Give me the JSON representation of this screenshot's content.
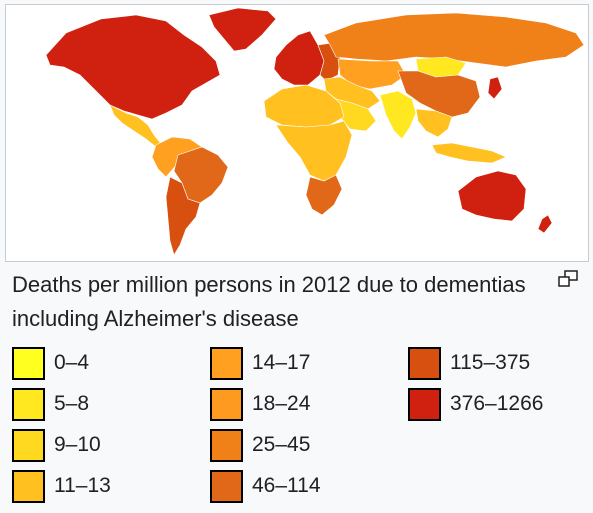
{
  "caption": "Deaths per million persons in 2012 due to dementias including Alzheimer's disease",
  "legend": [
    {
      "label": "0–4",
      "color": "#ffff20"
    },
    {
      "label": "5–8",
      "color": "#ffe820"
    },
    {
      "label": "9–10",
      "color": "#ffd820"
    },
    {
      "label": "11–13",
      "color": "#ffc020"
    },
    {
      "label": "14–17",
      "color": "#ffa020"
    },
    {
      "label": "18–24",
      "color": "#ff9a20"
    },
    {
      "label": "25–45",
      "color": "#f08018"
    },
    {
      "label": "46–114",
      "color": "#e06818"
    },
    {
      "label": "115–375",
      "color": "#d85010"
    },
    {
      "label": "376–1266",
      "color": "#d02010"
    }
  ],
  "regions": [
    {
      "id": "north-america",
      "color": "#d02010"
    },
    {
      "id": "greenland",
      "color": "#d02010"
    },
    {
      "id": "central-america",
      "color": "#ffc020"
    },
    {
      "id": "south-america-north",
      "color": "#ffa020"
    },
    {
      "id": "brazil",
      "color": "#e06818"
    },
    {
      "id": "south-america-south",
      "color": "#d85010"
    },
    {
      "id": "western-europe",
      "color": "#d02010"
    },
    {
      "id": "eastern-europe",
      "color": "#d85010"
    },
    {
      "id": "russia",
      "color": "#f08018"
    },
    {
      "id": "middle-east",
      "color": "#ffc020"
    },
    {
      "id": "arabia",
      "color": "#ffd820"
    },
    {
      "id": "north-africa",
      "color": "#ffc020"
    },
    {
      "id": "central-africa",
      "color": "#ffc020"
    },
    {
      "id": "southern-africa",
      "color": "#e06818"
    },
    {
      "id": "central-asia",
      "color": "#ffa020"
    },
    {
      "id": "mongolia",
      "color": "#ffe820"
    },
    {
      "id": "china",
      "color": "#e06818"
    },
    {
      "id": "india",
      "color": "#ffe820"
    },
    {
      "id": "southeast-asia",
      "color": "#ffc020"
    },
    {
      "id": "japan",
      "color": "#d02010"
    },
    {
      "id": "indonesia",
      "color": "#ffc020"
    },
    {
      "id": "australia",
      "color": "#d02010"
    },
    {
      "id": "new-zealand",
      "color": "#d02010"
    }
  ],
  "icons": {
    "enlarge": "enlarge-icon"
  }
}
